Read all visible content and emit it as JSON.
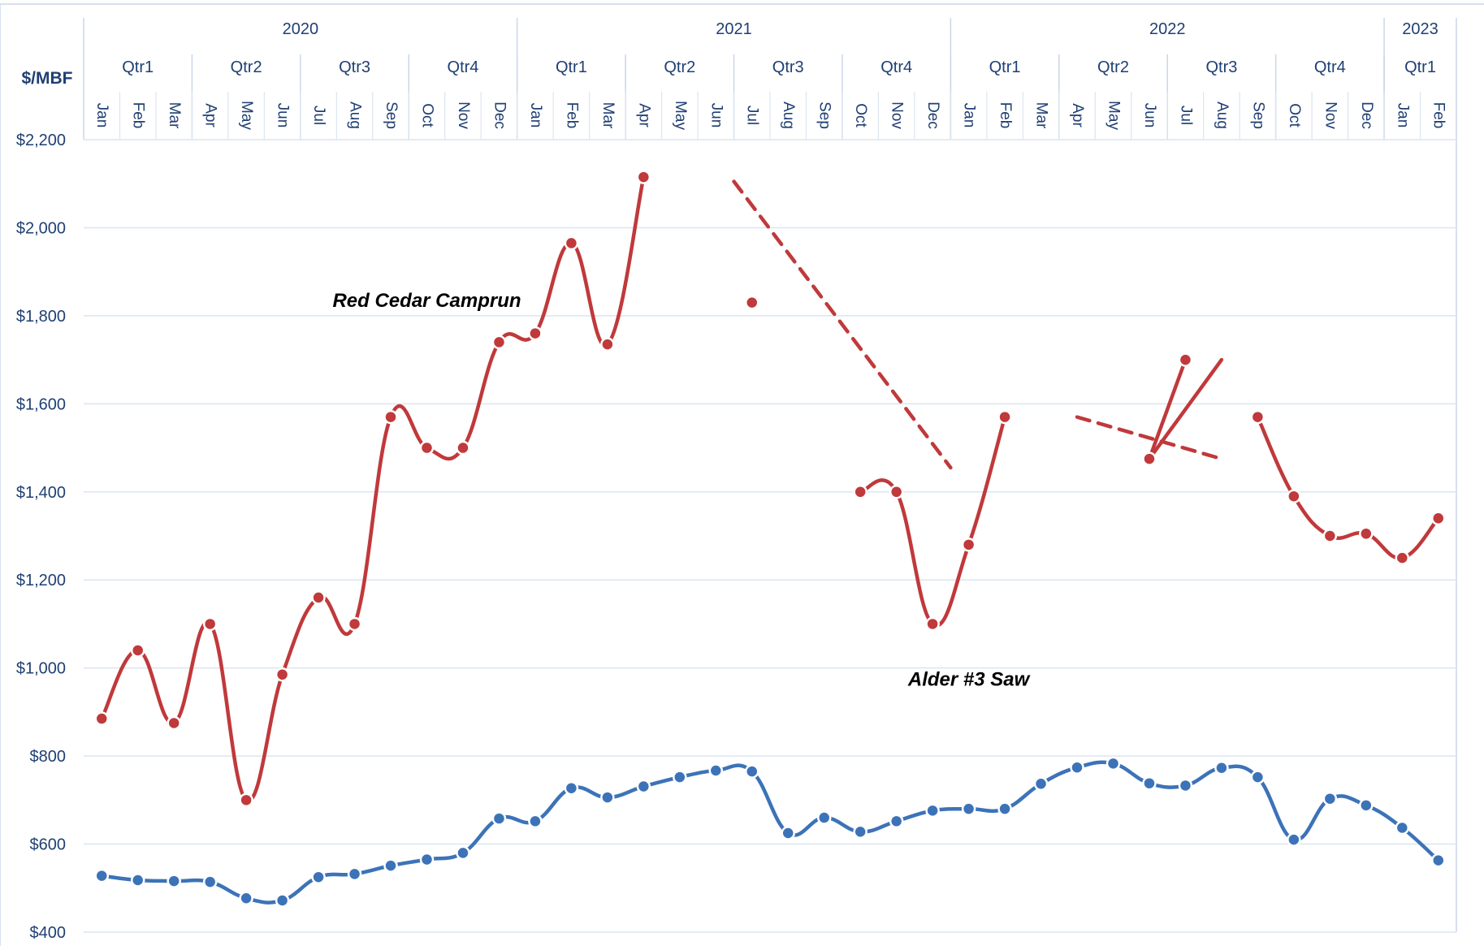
{
  "chart_data": {
    "type": "line",
    "ylabel": "$/MBF",
    "ylim": [
      400,
      2200
    ],
    "y_ticks": [
      "$400",
      "$600",
      "$800",
      "$1,000",
      "$1,200",
      "$1,400",
      "$1,600",
      "$1,800",
      "$2,000",
      "$2,200"
    ],
    "y_tick_values": [
      400,
      600,
      800,
      1000,
      1200,
      1400,
      1600,
      1800,
      2000,
      2200
    ],
    "grid": true,
    "years": [
      {
        "label": "2020",
        "months": 12
      },
      {
        "label": "2021",
        "months": 12
      },
      {
        "label": "2022",
        "months": 12
      },
      {
        "label": "2023",
        "months": 2
      }
    ],
    "quarters": [
      {
        "label": "Qtr1",
        "months": 3
      },
      {
        "label": "Qtr2",
        "months": 3
      },
      {
        "label": "Qtr3",
        "months": 3
      },
      {
        "label": "Qtr4",
        "months": 3
      },
      {
        "label": "Qtr1",
        "months": 3
      },
      {
        "label": "Qtr2",
        "months": 3
      },
      {
        "label": "Qtr3",
        "months": 3
      },
      {
        "label": "Qtr4",
        "months": 3
      },
      {
        "label": "Qtr1",
        "months": 3
      },
      {
        "label": "Qtr2",
        "months": 3
      },
      {
        "label": "Qtr3",
        "months": 3
      },
      {
        "label": "Qtr4",
        "months": 3
      },
      {
        "label": "Qtr1",
        "months": 2
      }
    ],
    "categories": [
      "Jan",
      "Feb",
      "Mar",
      "Apr",
      "May",
      "Jun",
      "Jul",
      "Aug",
      "Sep",
      "Oct",
      "Nov",
      "Dec",
      "Jan",
      "Feb",
      "Mar",
      "Apr",
      "May",
      "Jun",
      "Jul",
      "Aug",
      "Sep",
      "Oct",
      "Nov",
      "Dec",
      "Jan",
      "Feb",
      "Mar",
      "Apr",
      "May",
      "Jun",
      "Jul",
      "Aug",
      "Sep",
      "Oct",
      "Nov",
      "Dec",
      "Jan",
      "Feb"
    ],
    "series": [
      {
        "name": "Red Cedar Camprun",
        "color": "#c0393b",
        "values": [
          885,
          1040,
          875,
          1100,
          700,
          985,
          1160,
          1100,
          1570,
          1500,
          1500,
          1740,
          1760,
          1965,
          1735,
          2115,
          null,
          null,
          1830,
          null,
          null,
          1400,
          1400,
          1100,
          1280,
          1570,
          null,
          null,
          null,
          1475,
          1700,
          null,
          1570,
          1390,
          1300,
          1305,
          1250,
          1340
        ]
      },
      {
        "name": "Alder #3 Saw",
        "color": "#3c73b8",
        "values": [
          528,
          518,
          516,
          514,
          477,
          472,
          525,
          532,
          551,
          565,
          580,
          658,
          652,
          727,
          706,
          731,
          752,
          767,
          765,
          625,
          660,
          628,
          652,
          676,
          680,
          680,
          737,
          774,
          783,
          738,
          733,
          773,
          752,
          610,
          703,
          688,
          637,
          563
        ]
      }
    ],
    "trend_lines": [
      {
        "color": "#c0393b",
        "x": [
          17.5,
          23.5
        ],
        "y": [
          2105,
          1455
        ]
      },
      {
        "color": "#c0393b",
        "x": [
          27.0,
          31.0
        ],
        "y": [
          1570,
          1475
        ]
      },
      {
        "color": "#c0393b",
        "x": [
          29.0,
          31.0
        ],
        "y": [
          1475,
          1700
        ]
      }
    ],
    "annotations": [
      {
        "text": "Red Cedar Camprun",
        "x": 9.0,
        "y": 1820,
        "color": "#000000"
      },
      {
        "text": "Alder #3 Saw",
        "x": 24.0,
        "y": 960,
        "color": "#000000"
      }
    ]
  }
}
